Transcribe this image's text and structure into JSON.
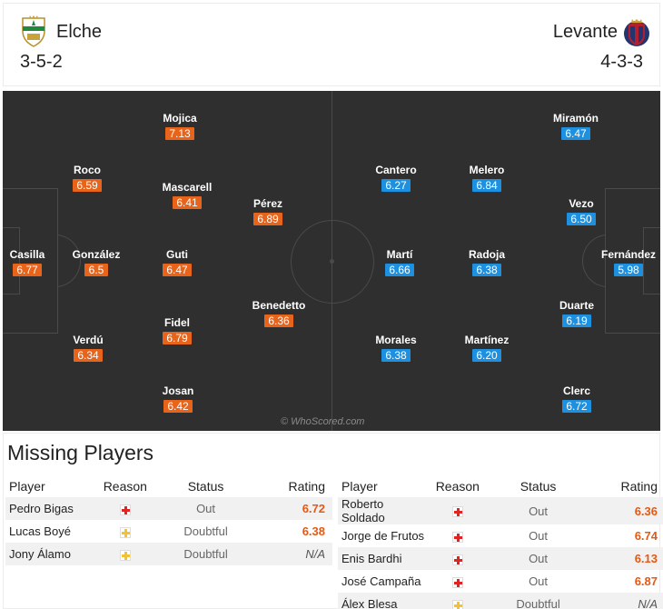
{
  "home": {
    "name": "Elche",
    "formation": "3-5-2",
    "crest_icon": "elche-crest-icon",
    "players": [
      {
        "name": "Mojica",
        "rating": "7.13"
      },
      {
        "name": "Roco",
        "rating": "6.59"
      },
      {
        "name": "Mascarell",
        "rating": "6.41"
      },
      {
        "name": "Pérez",
        "rating": "6.89"
      },
      {
        "name": "Casilla",
        "rating": "6.77"
      },
      {
        "name": "González",
        "rating": "6.5"
      },
      {
        "name": "Guti",
        "rating": "6.47"
      },
      {
        "name": "Benedetto",
        "rating": "6.36"
      },
      {
        "name": "Fidel",
        "rating": "6.79"
      },
      {
        "name": "Verdú",
        "rating": "6.34"
      },
      {
        "name": "Josan",
        "rating": "6.42"
      }
    ]
  },
  "away": {
    "name": "Levante",
    "formation": "4-3-3",
    "crest_icon": "levante-crest-icon",
    "players": [
      {
        "name": "Miramón",
        "rating": "6.47"
      },
      {
        "name": "Cantero",
        "rating": "6.27"
      },
      {
        "name": "Melero",
        "rating": "6.84"
      },
      {
        "name": "Vezo",
        "rating": "6.50"
      },
      {
        "name": "Martí",
        "rating": "6.66"
      },
      {
        "name": "Radoja",
        "rating": "6.38"
      },
      {
        "name": "Fernández",
        "rating": "5.98"
      },
      {
        "name": "Duarte",
        "rating": "6.19"
      },
      {
        "name": "Morales",
        "rating": "6.38"
      },
      {
        "name": "Martínez",
        "rating": "6.20"
      },
      {
        "name": "Clerc",
        "rating": "6.72"
      }
    ]
  },
  "pitch": {
    "watermark": "© WhoScored.com"
  },
  "missing": {
    "title": "Missing Players",
    "headers": {
      "player": "Player",
      "reason": "Reason",
      "status": "Status",
      "rating": "Rating"
    },
    "home": [
      {
        "player": "Pedro Bigas",
        "reason": "injury",
        "status": "Out",
        "rating": "6.72"
      },
      {
        "player": "Lucas Boyé",
        "reason": "doubtful",
        "status": "Doubtful",
        "rating": "6.38"
      },
      {
        "player": "Jony Álamo",
        "reason": "doubtful",
        "status": "Doubtful",
        "rating": "N/A"
      }
    ],
    "away": [
      {
        "player": "Roberto Soldado",
        "reason": "injury",
        "status": "Out",
        "rating": "6.36"
      },
      {
        "player": "Jorge de Frutos",
        "reason": "injury",
        "status": "Out",
        "rating": "6.74"
      },
      {
        "player": "Enis Bardhi",
        "reason": "injury",
        "status": "Out",
        "rating": "6.13"
      },
      {
        "player": "José Campaña",
        "reason": "injury",
        "status": "Out",
        "rating": "6.87"
      },
      {
        "player": "Álex Blesa",
        "reason": "doubtful",
        "status": "Doubtful",
        "rating": "N/A"
      }
    ]
  },
  "colors": {
    "home_rating": "#e8641b",
    "away_rating": "#1e90e0",
    "pitch": "#2f2f2f",
    "missing_rating": "#e25a16"
  }
}
